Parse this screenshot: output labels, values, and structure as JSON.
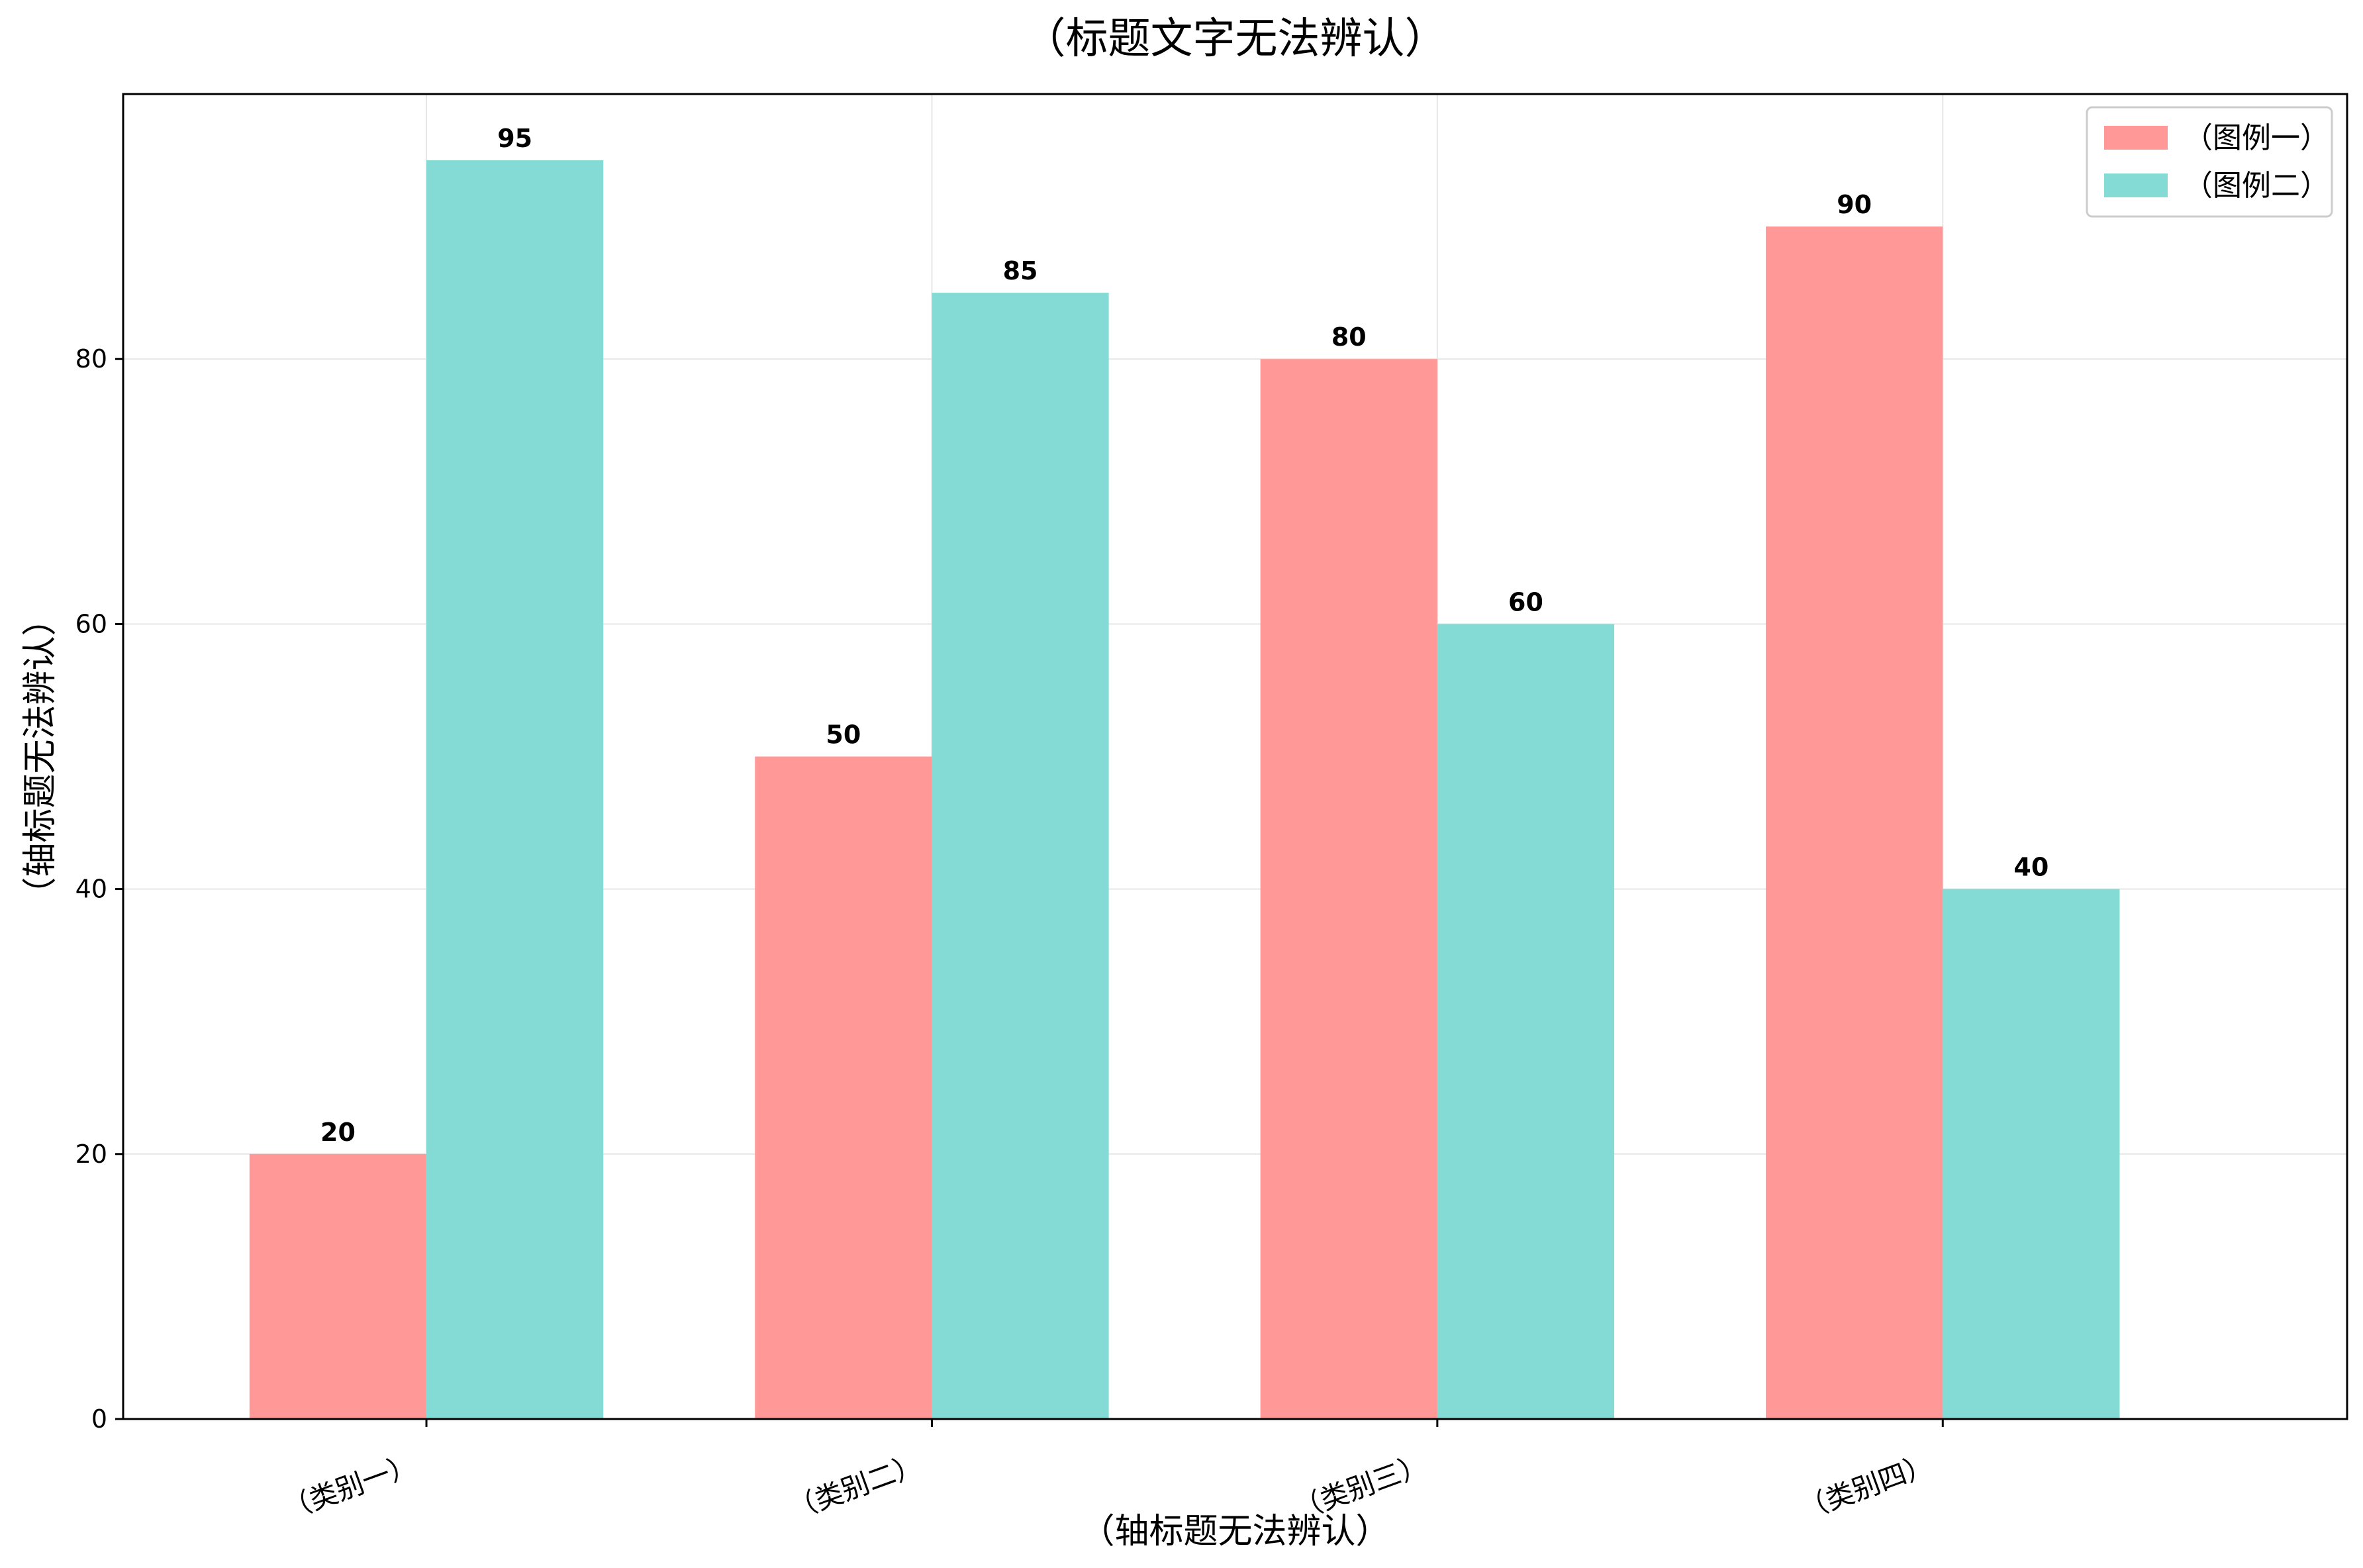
{
  "chart_data": {
    "type": "bar",
    "title": "（标题文字无法辨认）",
    "xlabel": "（轴标题无法辨认）",
    "ylabel": "（轴标题无法辨认）",
    "categories": [
      "（类别一）",
      "（类别二）",
      "（类别三）",
      "（类别四）"
    ],
    "series": [
      {
        "name": "（图例一）",
        "color": "#ff9896",
        "values": [
          20,
          50,
          80,
          90
        ]
      },
      {
        "name": "（图例二）",
        "color": "#84dbd5",
        "values": [
          95,
          85,
          60,
          40
        ]
      }
    ],
    "ylim": [
      0,
      100
    ],
    "yticks": [
      0,
      20,
      40,
      60,
      80
    ],
    "grid": true,
    "legend_position": "top-right",
    "data_labels": true
  }
}
